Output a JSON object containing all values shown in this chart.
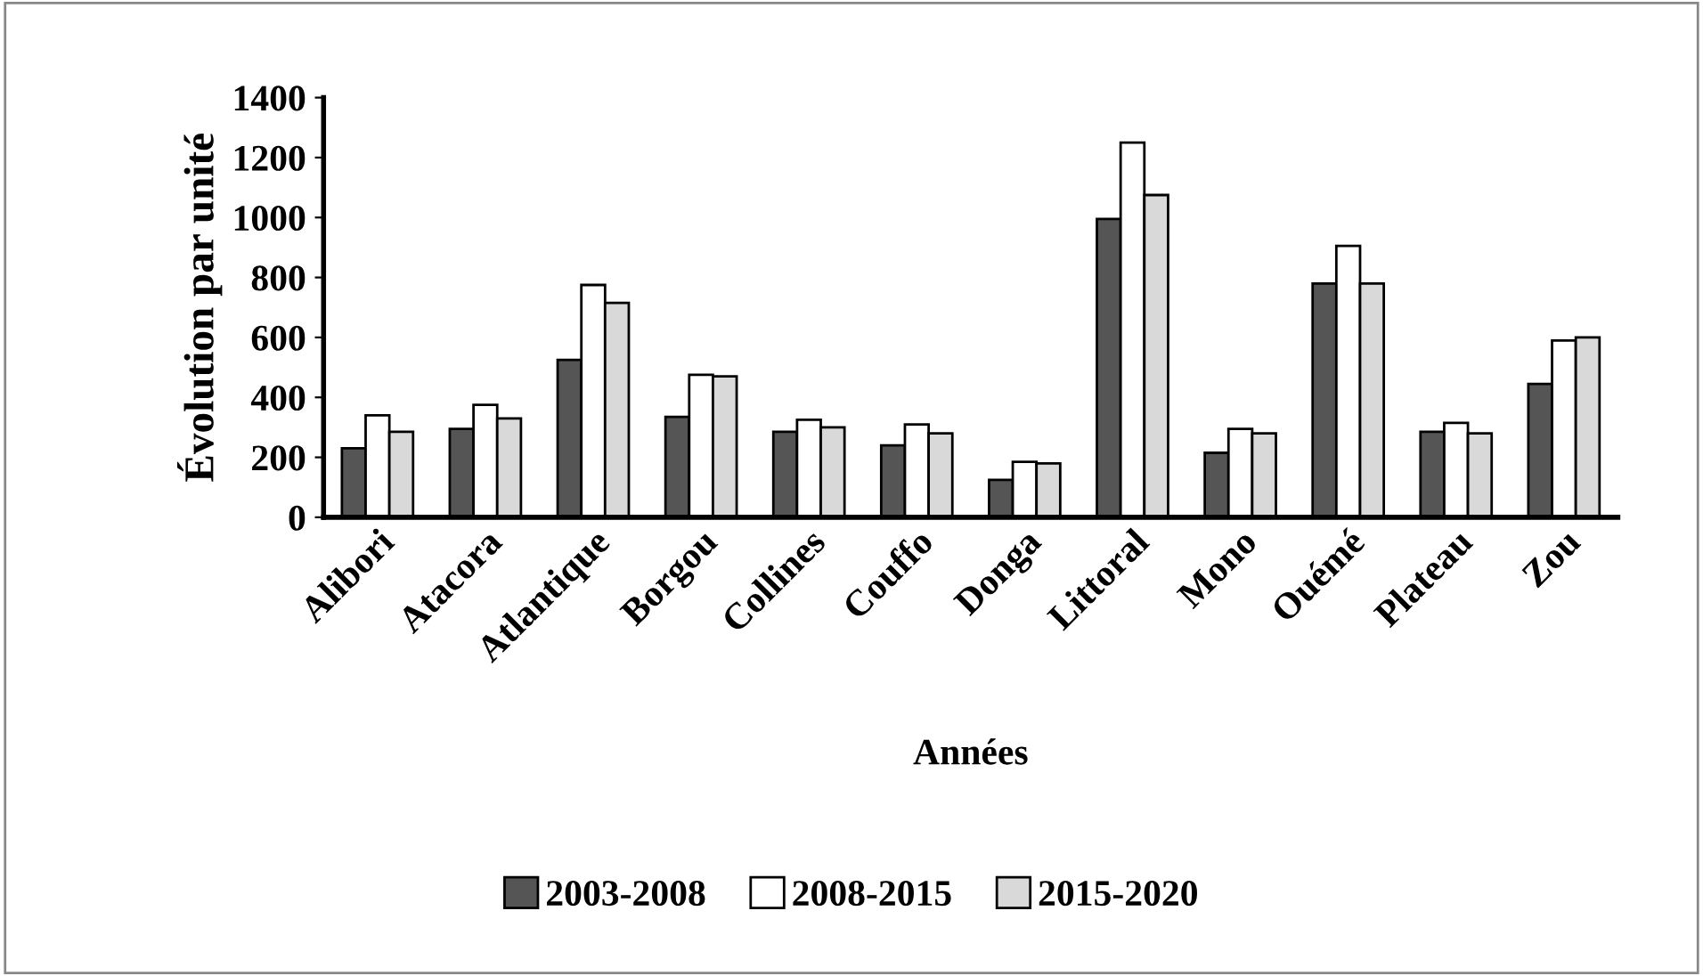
{
  "chart_data": {
    "type": "bar",
    "xlabel": "Années",
    "ylabel": "Évolution par unité",
    "categories": [
      "Alibori",
      "Atacora",
      "Atlantique",
      "Borgou",
      "Collines",
      "Couffo",
      "Donga",
      "Littoral",
      "Mono",
      "Ouémé",
      "Plateau",
      "Zou"
    ],
    "series": [
      {
        "name": "2003-2008",
        "color": "#555555",
        "values": [
          230,
          295,
          525,
          335,
          285,
          240,
          125,
          995,
          215,
          780,
          285,
          445
        ]
      },
      {
        "name": "2008-2015",
        "color": "#ffffff",
        "values": [
          340,
          375,
          775,
          475,
          325,
          310,
          185,
          1250,
          295,
          905,
          315,
          590
        ]
      },
      {
        "name": "2015-2020",
        "color": "#d9d9d9",
        "values": [
          285,
          330,
          715,
          470,
          300,
          280,
          180,
          1075,
          280,
          780,
          280,
          600
        ]
      }
    ],
    "ylim": [
      0,
      1400
    ],
    "yticks": [
      0,
      200,
      400,
      600,
      800,
      1000,
      1200,
      1400
    ],
    "grid": false,
    "legend": "bottom"
  }
}
